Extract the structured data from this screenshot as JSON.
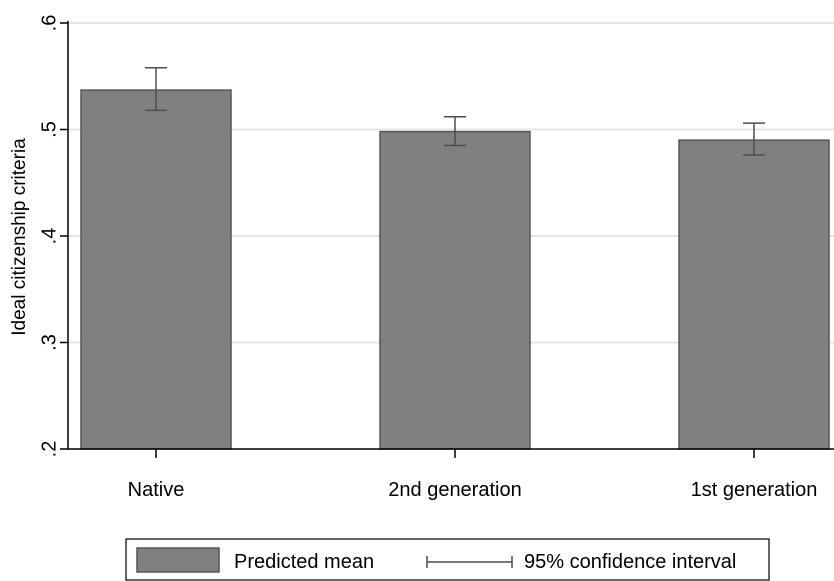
{
  "chart_data": {
    "type": "bar",
    "categories": [
      "Native",
      "2nd generation",
      "1st generation"
    ],
    "values": [
      0.537,
      0.498,
      0.49
    ],
    "ci_low": [
      0.518,
      0.485,
      0.476
    ],
    "ci_high": [
      0.558,
      0.512,
      0.506
    ],
    "ylabel": "Ideal citizenship criteria",
    "xlabel": "",
    "ylim": [
      0.2,
      0.6
    ],
    "yticks": [
      0.2,
      0.3,
      0.4,
      0.5,
      0.6
    ],
    "ytick_labels": [
      ".2",
      ".3",
      ".4",
      ".5",
      ".6"
    ],
    "grid": true,
    "legend": {
      "position": "bottom",
      "items": [
        "Predicted mean",
        "95% confidence interval"
      ]
    },
    "colors": {
      "bar_fill": "#808080",
      "bar_stroke": "#555555",
      "error_bar": "#4d4d4d",
      "grid": "#e4e4e4",
      "axis": "#000000"
    }
  }
}
